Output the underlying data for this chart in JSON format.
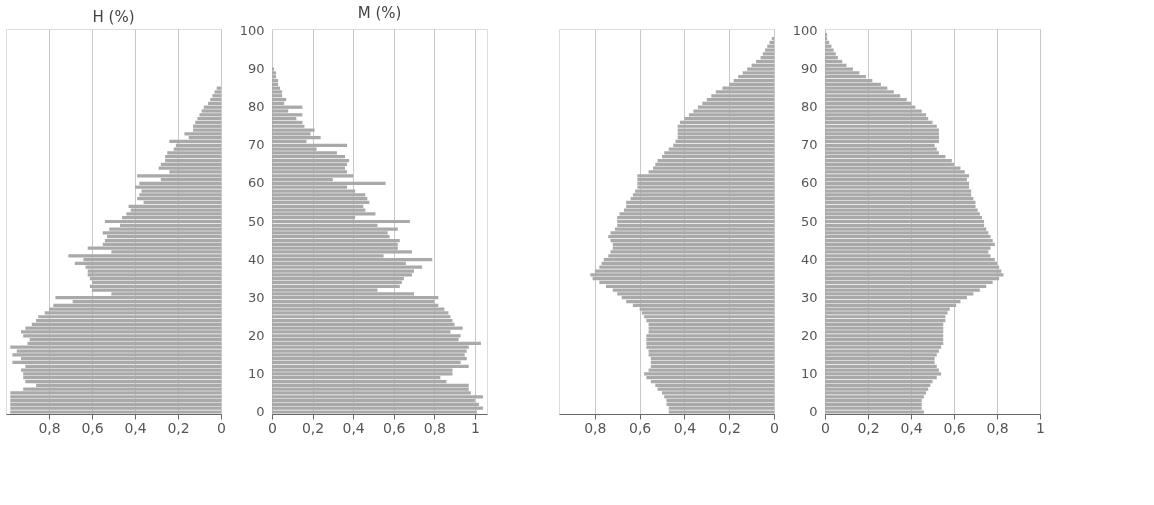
{
  "chart_data": [
    {
      "type": "bar",
      "orientation": "horizontal",
      "title": "H (%)",
      "color": "#a9a9a9",
      "grid": "x",
      "tick_labels": "x",
      "categories": [
        "100",
        null,
        null,
        null,
        null,
        null,
        null,
        null,
        null,
        null,
        "90",
        null,
        null,
        null,
        null,
        null,
        null,
        null,
        null,
        null,
        "80",
        null,
        null,
        null,
        null,
        null,
        null,
        null,
        null,
        null,
        "70",
        null,
        null,
        null,
        null,
        null,
        null,
        null,
        null,
        null,
        "60",
        null,
        null,
        null,
        null,
        null,
        null,
        null,
        null,
        null,
        "50",
        null,
        null,
        null,
        null,
        null,
        null,
        null,
        null,
        null,
        "40",
        null,
        null,
        null,
        null,
        null,
        null,
        null,
        null,
        null,
        "30",
        null,
        null,
        null,
        null,
        null,
        null,
        null,
        null,
        null,
        "20",
        null,
        null,
        null,
        null,
        null,
        null,
        null,
        null,
        null,
        "10",
        null,
        null,
        null,
        null,
        null,
        null,
        null,
        null,
        null,
        "0"
      ],
      "values": [
        null,
        null,
        null,
        null,
        null,
        null,
        null,
        null,
        null,
        null,
        null,
        null,
        null,
        null,
        null,
        0.02,
        0.03,
        0.04,
        0.05,
        0.06,
        0.08,
        0.09,
        0.1,
        0.11,
        0.12,
        0.13,
        0.13,
        0.17,
        0.15,
        0.24,
        0.21,
        0.22,
        0.25,
        0.26,
        0.26,
        0.28,
        0.29,
        0.24,
        0.39,
        0.28,
        0.38,
        0.4,
        0.37,
        0.38,
        0.39,
        0.36,
        0.43,
        0.42,
        0.44,
        0.46,
        0.54,
        0.47,
        0.52,
        0.55,
        0.53,
        0.54,
        0.55,
        0.62,
        0.51,
        0.71,
        0.64,
        0.68,
        0.63,
        0.62,
        0.62,
        0.61,
        0.6,
        0.61,
        0.6,
        0.51,
        0.77,
        0.69,
        0.78,
        0.8,
        0.82,
        0.85,
        0.86,
        0.88,
        0.91,
        0.93,
        0.92,
        0.89,
        0.9,
        0.98,
        0.95,
        0.97,
        0.93,
        0.97,
        0.91,
        0.93,
        0.92,
        0.92,
        0.91,
        0.86,
        0.92,
        0.98,
        0.98,
        0.98,
        0.98,
        0.98,
        0.98
      ],
      "xlim": [
        1,
        0
      ],
      "xticks": [
        {
          "value": 0.8,
          "label": "0,8"
        },
        {
          "value": 0.6,
          "label": "0,6"
        },
        {
          "value": 0.4,
          "label": "0,4"
        },
        {
          "value": 0.2,
          "label": "0,2"
        },
        {
          "value": 0,
          "label": "0"
        }
      ]
    },
    {
      "type": "bar",
      "orientation": "horizontal",
      "title": "M (%)",
      "color": "#a9a9a9",
      "grid": "x",
      "categories": [
        "100",
        null,
        null,
        null,
        null,
        null,
        null,
        null,
        null,
        null,
        "90",
        null,
        null,
        null,
        null,
        null,
        null,
        null,
        null,
        null,
        "80",
        null,
        null,
        null,
        null,
        null,
        null,
        null,
        null,
        null,
        "70",
        null,
        null,
        null,
        null,
        null,
        null,
        null,
        null,
        null,
        "60",
        null,
        null,
        null,
        null,
        null,
        null,
        null,
        null,
        null,
        "50",
        null,
        null,
        null,
        null,
        null,
        null,
        null,
        null,
        null,
        "40",
        null,
        null,
        null,
        null,
        null,
        null,
        null,
        null,
        null,
        "30",
        null,
        null,
        null,
        null,
        null,
        null,
        null,
        null,
        null,
        "20",
        null,
        null,
        null,
        null,
        null,
        null,
        null,
        null,
        null,
        "10",
        null,
        null,
        null,
        null,
        null,
        null,
        null,
        null,
        null,
        "0"
      ],
      "values": [
        null,
        null,
        null,
        null,
        null,
        null,
        null,
        null,
        null,
        null,
        0.01,
        0.02,
        0.02,
        0.03,
        0.03,
        0.04,
        0.05,
        0.05,
        0.07,
        0.06,
        0.15,
        0.08,
        0.15,
        0.12,
        0.15,
        0.16,
        0.21,
        0.19,
        0.24,
        0.17,
        0.37,
        0.22,
        0.32,
        0.36,
        0.38,
        0.37,
        0.36,
        0.37,
        0.4,
        0.3,
        0.56,
        0.37,
        0.41,
        0.46,
        0.47,
        0.48,
        0.45,
        0.46,
        0.51,
        0.41,
        0.68,
        0.52,
        0.62,
        0.57,
        0.58,
        0.63,
        0.62,
        0.62,
        0.69,
        0.55,
        0.79,
        0.66,
        0.74,
        0.7,
        0.69,
        0.65,
        0.64,
        0.63,
        0.52,
        0.7,
        0.82,
        0.8,
        0.82,
        0.85,
        0.87,
        0.88,
        0.89,
        0.9,
        0.94,
        0.88,
        0.93,
        0.92,
        1.03,
        0.97,
        0.96,
        0.95,
        0.96,
        0.93,
        0.97,
        0.89,
        0.89,
        0.83,
        0.86,
        0.97,
        0.97,
        0.98,
        1.04,
        1.0,
        1.02,
        1.04,
        1.01
      ],
      "xlim": [
        0,
        1.06
      ],
      "xticks": [
        {
          "value": 0,
          "label": "0"
        },
        {
          "value": 0.2,
          "label": "0,2"
        },
        {
          "value": 0.4,
          "label": "0,4"
        },
        {
          "value": 0.6,
          "label": "0,6"
        },
        {
          "value": 0.8,
          "label": "0,8"
        },
        {
          "value": 1,
          "label": "1"
        }
      ]
    },
    {
      "type": "bar",
      "orientation": "horizontal",
      "color": "#a9a9a9",
      "grid": "x",
      "tick_labels": "x",
      "categories": [
        "100",
        null,
        null,
        null,
        null,
        null,
        null,
        null,
        null,
        null,
        "90",
        null,
        null,
        null,
        null,
        null,
        null,
        null,
        null,
        null,
        "80",
        null,
        null,
        null,
        null,
        null,
        null,
        null,
        null,
        null,
        "70",
        null,
        null,
        null,
        null,
        null,
        null,
        null,
        null,
        null,
        "60",
        null,
        null,
        null,
        null,
        null,
        null,
        null,
        null,
        null,
        "50",
        null,
        null,
        null,
        null,
        null,
        null,
        null,
        null,
        null,
        "40",
        null,
        null,
        null,
        null,
        null,
        null,
        null,
        null,
        null,
        "30",
        null,
        null,
        null,
        null,
        null,
        null,
        null,
        null,
        null,
        "20",
        null,
        null,
        null,
        null,
        null,
        null,
        null,
        null,
        null,
        "10",
        null,
        null,
        null,
        null,
        null,
        null,
        null,
        null,
        null,
        "0"
      ],
      "values": [
        null,
        null,
        0.01,
        0.02,
        0.03,
        0.04,
        0.05,
        0.06,
        0.08,
        0.1,
        0.12,
        0.14,
        0.16,
        0.18,
        0.2,
        0.23,
        0.26,
        0.28,
        0.3,
        0.32,
        0.34,
        0.36,
        0.38,
        0.4,
        0.42,
        0.43,
        0.43,
        0.43,
        0.43,
        0.44,
        0.45,
        0.47,
        0.49,
        0.5,
        0.52,
        0.53,
        0.54,
        0.56,
        0.61,
        0.61,
        0.61,
        0.61,
        0.62,
        0.63,
        0.64,
        0.66,
        0.66,
        0.67,
        0.69,
        0.7,
        0.7,
        0.7,
        0.71,
        0.73,
        0.74,
        0.73,
        0.72,
        0.72,
        0.73,
        0.74,
        0.76,
        0.77,
        0.78,
        0.8,
        0.82,
        0.81,
        0.78,
        0.75,
        0.72,
        0.7,
        0.68,
        0.66,
        0.63,
        0.6,
        0.59,
        0.58,
        0.57,
        0.56,
        0.56,
        0.56,
        0.57,
        0.57,
        0.57,
        0.57,
        0.56,
        0.56,
        0.55,
        0.55,
        0.55,
        0.56,
        0.58,
        0.57,
        0.55,
        0.53,
        0.52,
        0.5,
        0.49,
        0.48,
        0.48,
        0.47,
        0.47
      ],
      "xlim": [
        0.96,
        0
      ],
      "xticks": [
        {
          "value": 0.8,
          "label": "0,8"
        },
        {
          "value": 0.6,
          "label": "0,6"
        },
        {
          "value": 0.4,
          "label": "0,4"
        },
        {
          "value": 0.2,
          "label": "0,2"
        },
        {
          "value": 0,
          "label": "0"
        }
      ]
    },
    {
      "type": "bar",
      "orientation": "horizontal",
      "color": "#a9a9a9",
      "grid": "x",
      "categories": [
        "100",
        null,
        null,
        null,
        null,
        null,
        null,
        null,
        null,
        null,
        "90",
        null,
        null,
        null,
        null,
        null,
        null,
        null,
        null,
        null,
        "80",
        null,
        null,
        null,
        null,
        null,
        null,
        null,
        null,
        null,
        "70",
        null,
        null,
        null,
        null,
        null,
        null,
        null,
        null,
        null,
        "60",
        null,
        null,
        null,
        null,
        null,
        null,
        null,
        null,
        null,
        "50",
        null,
        null,
        null,
        null,
        null,
        null,
        null,
        null,
        null,
        "40",
        null,
        null,
        null,
        null,
        null,
        null,
        null,
        null,
        null,
        "30",
        null,
        null,
        null,
        null,
        null,
        null,
        null,
        null,
        null,
        "20",
        null,
        null,
        null,
        null,
        null,
        null,
        null,
        null,
        null,
        "10",
        null,
        null,
        null,
        null,
        null,
        null,
        null,
        null,
        null,
        "0"
      ],
      "values": [
        null,
        0.01,
        0.01,
        0.02,
        0.03,
        0.04,
        0.05,
        0.06,
        0.08,
        0.1,
        0.13,
        0.16,
        0.19,
        0.22,
        0.26,
        0.29,
        0.32,
        0.35,
        0.38,
        0.4,
        0.42,
        0.45,
        0.47,
        0.48,
        0.5,
        0.52,
        0.53,
        0.53,
        0.53,
        0.53,
        0.51,
        0.52,
        0.53,
        0.56,
        0.59,
        0.6,
        0.63,
        0.65,
        0.67,
        0.66,
        0.67,
        0.67,
        0.68,
        0.68,
        0.69,
        0.7,
        0.7,
        0.71,
        0.72,
        0.73,
        0.74,
        0.74,
        0.75,
        0.76,
        0.77,
        0.78,
        0.79,
        0.77,
        0.76,
        0.77,
        0.79,
        0.8,
        0.81,
        0.82,
        0.83,
        0.81,
        0.78,
        0.75,
        0.72,
        0.69,
        0.66,
        0.63,
        0.61,
        0.58,
        0.57,
        0.56,
        0.56,
        0.55,
        0.55,
        0.55,
        0.55,
        0.55,
        0.55,
        0.54,
        0.53,
        0.52,
        0.51,
        0.51,
        0.52,
        0.53,
        0.54,
        0.52,
        0.5,
        0.49,
        0.48,
        0.47,
        0.46,
        0.45,
        0.45,
        0.45,
        0.46
      ],
      "xlim": [
        0,
        1
      ],
      "xticks": [
        {
          "value": 0,
          "label": "0"
        },
        {
          "value": 0.2,
          "label": "0,2"
        },
        {
          "value": 0.4,
          "label": "0,4"
        },
        {
          "value": 0.6,
          "label": "0,6"
        },
        {
          "value": 0.8,
          "label": "0,8"
        },
        {
          "value": 1,
          "label": "1"
        }
      ]
    }
  ]
}
